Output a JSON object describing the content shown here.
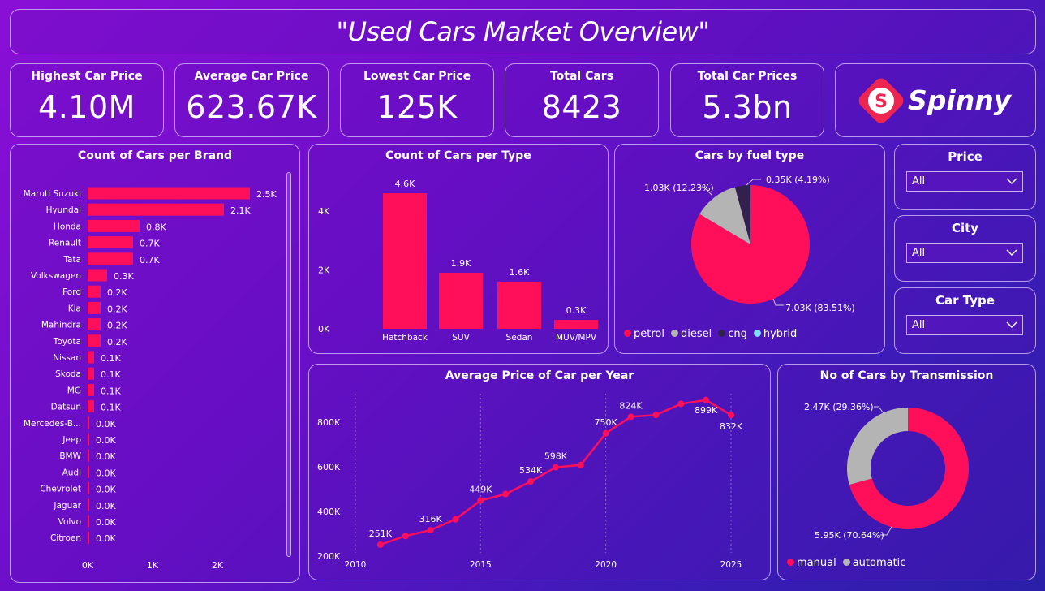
{
  "header": {
    "title": "\"Used Cars Market Overview\""
  },
  "kpis": [
    {
      "label": "Highest Car Price",
      "value": "4.10M"
    },
    {
      "label": "Average Car Price",
      "value": "623.67K"
    },
    {
      "label": "Lowest Car Price",
      "value": "125K"
    },
    {
      "label": "Total Cars",
      "value": "8423"
    },
    {
      "label": "Total Car Prices",
      "value": "5.3bn"
    }
  ],
  "logo": {
    "text": "Spinny",
    "mark": "S",
    "color": "#ee2550"
  },
  "colors": {
    "accent": "#ff0f5a",
    "grey": "#b4b4b4",
    "dark": "#33214d",
    "cyan": "#7fd8ff"
  },
  "slicers": [
    {
      "title": "Price",
      "value": "All"
    },
    {
      "title": "City",
      "value": "All"
    },
    {
      "title": "Car Type",
      "value": "All"
    }
  ],
  "chart_data": [
    {
      "type": "bar",
      "orientation": "horizontal",
      "title": "Count of Cars per Brand",
      "categories": [
        "Maruti Suzuki",
        "Hyundai",
        "Honda",
        "Renault",
        "Tata",
        "Volkswagen",
        "Ford",
        "Kia",
        "Mahindra",
        "Toyota",
        "Nissan",
        "Skoda",
        "MG",
        "Datsun",
        "Mercedes-B...",
        "Jeep",
        "BMW",
        "Audi",
        "Chevrolet",
        "Jaguar",
        "Volvo",
        "Citroen"
      ],
      "values": [
        2500,
        2100,
        800,
        700,
        700,
        300,
        200,
        200,
        200,
        200,
        100,
        100,
        100,
        100,
        20,
        20,
        20,
        20,
        20,
        10,
        10,
        10
      ],
      "data_labels": [
        "2.5K",
        "2.1K",
        "0.8K",
        "0.7K",
        "0.7K",
        "0.3K",
        "0.2K",
        "0.2K",
        "0.2K",
        "0.2K",
        "0.1K",
        "0.1K",
        "0.1K",
        "0.1K",
        "0.0K",
        "0.0K",
        "0.0K",
        "0.0K",
        "0.0K",
        "0.0K",
        "0.0K",
        "0.0K"
      ],
      "xticks": [
        "0K",
        "1K",
        "2K"
      ],
      "xlim": [
        0,
        2500
      ]
    },
    {
      "type": "bar",
      "title": "Count of Cars per Type",
      "categories": [
        "Hatchback",
        "SUV",
        "Sedan",
        "MUV/MPV"
      ],
      "values": [
        4600,
        1900,
        1600,
        300
      ],
      "data_labels": [
        "4.6K",
        "1.9K",
        "1.6K",
        "0.3K"
      ],
      "yticks": [
        "0K",
        "2K",
        "4K"
      ],
      "ylim": [
        0,
        4600
      ]
    },
    {
      "type": "pie",
      "title": "Cars by fuel type",
      "slices": [
        {
          "name": "petrol",
          "value": 7030,
          "label": "7.03K (83.51%)",
          "color": "#ff0f5a"
        },
        {
          "name": "diesel",
          "value": 1030,
          "label": "1.03K (12.23%)",
          "color": "#b4b4b4"
        },
        {
          "name": "cng",
          "value": 350,
          "label": "0.35K (4.19%)",
          "color": "#33214d"
        },
        {
          "name": "hybrid",
          "value": 5,
          "label": "",
          "color": "#7fd8ff"
        }
      ],
      "legend": [
        "petrol",
        "diesel",
        "cng",
        "hybrid"
      ]
    },
    {
      "type": "line",
      "title": "Average Price of Car per Year",
      "x": [
        2011,
        2012,
        2013,
        2014,
        2015,
        2016,
        2017,
        2018,
        2019,
        2020,
        2021,
        2022,
        2023,
        2024,
        2025
      ],
      "y": [
        251000,
        290000,
        316000,
        365000,
        449000,
        478000,
        534000,
        598000,
        608000,
        750000,
        824000,
        832000,
        882000,
        899000,
        832000
      ],
      "point_labels": [
        {
          "i": 0,
          "text": "251K"
        },
        {
          "i": 2,
          "text": "316K"
        },
        {
          "i": 4,
          "text": "449K"
        },
        {
          "i": 6,
          "text": "534K"
        },
        {
          "i": 7,
          "text": "598K"
        },
        {
          "i": 9,
          "text": "750K"
        },
        {
          "i": 10,
          "text": "824K"
        },
        {
          "i": 13,
          "text": "899K"
        },
        {
          "i": 14,
          "text": "832K"
        }
      ],
      "xticks": [
        2010,
        2015,
        2020,
        2025
      ],
      "yticks": [
        "200K",
        "400K",
        "600K",
        "800K"
      ],
      "xlim": [
        2010,
        2025
      ],
      "ylim": [
        200000,
        920000
      ]
    },
    {
      "type": "pie",
      "donut": true,
      "title": "No of Cars by Transmission",
      "slices": [
        {
          "name": "manual",
          "value": 5950,
          "label": "5.95K (70.64%)",
          "color": "#ff0f5a"
        },
        {
          "name": "automatic",
          "value": 2470,
          "label": "2.47K (29.36%)",
          "color": "#b4b4b4"
        }
      ],
      "legend": [
        "manual",
        "automatic"
      ]
    }
  ]
}
